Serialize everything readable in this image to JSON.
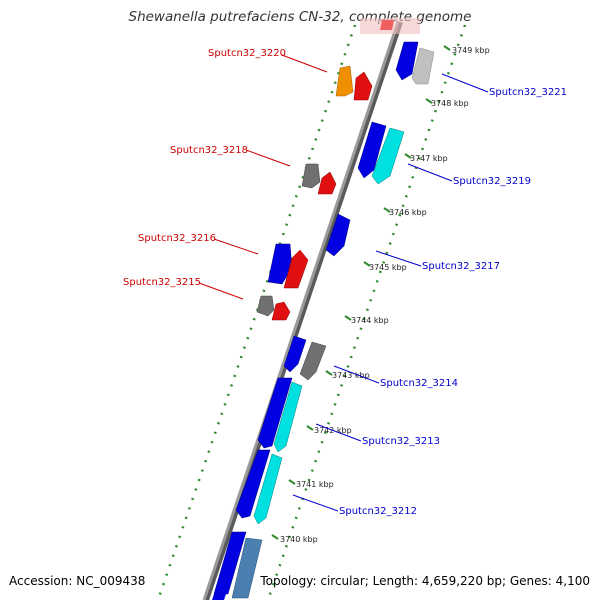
{
  "title": "Shewanella putrefaciens CN-32, complete genome",
  "footer": {
    "accession": "Accession: NC_009438",
    "topology": "Topology: circular; Length: 4,659,220 bp; Genes: 4,100"
  },
  "colors": {
    "backbone": "#808080",
    "gc_skew_dots": "#2e8b2e",
    "forward_label": "#0000cc",
    "reverse_label": "#cc0000",
    "cds_blue": "#0000e0",
    "cds_red": "#e01010",
    "cds_cyan": "#00e0e0",
    "cds_orange": "#f09000",
    "cds_gray": "#707070",
    "cds_lightgray": "#c0c0c0",
    "cds_steelblue": "#4a7fb0"
  },
  "scale_ticks": [
    {
      "label": "3749 kbp",
      "kbp": 3749
    },
    {
      "label": "3748 kbp",
      "kbp": 3748
    },
    {
      "label": "3747 kbp",
      "kbp": 3747
    },
    {
      "label": "3746 kbp",
      "kbp": 3746
    },
    {
      "label": "3745 kbp",
      "kbp": 3745
    },
    {
      "label": "3744 kbp",
      "kbp": 3744
    },
    {
      "label": "3743 kbp",
      "kbp": 3743
    },
    {
      "label": "3742 kbp",
      "kbp": 3742
    },
    {
      "label": "3741 kbp",
      "kbp": 3741
    },
    {
      "label": "3740 kbp",
      "kbp": 3740
    }
  ],
  "gene_labels_forward": [
    "Sputcn32_3221",
    "Sputcn32_3219",
    "Sputcn32_3217",
    "Sputcn32_3214",
    "Sputcn32_3213",
    "Sputcn32_3212"
  ],
  "gene_labels_reverse": [
    "Sputcn32_3220",
    "Sputcn32_3218",
    "Sputcn32_3216",
    "Sputcn32_3215"
  ]
}
